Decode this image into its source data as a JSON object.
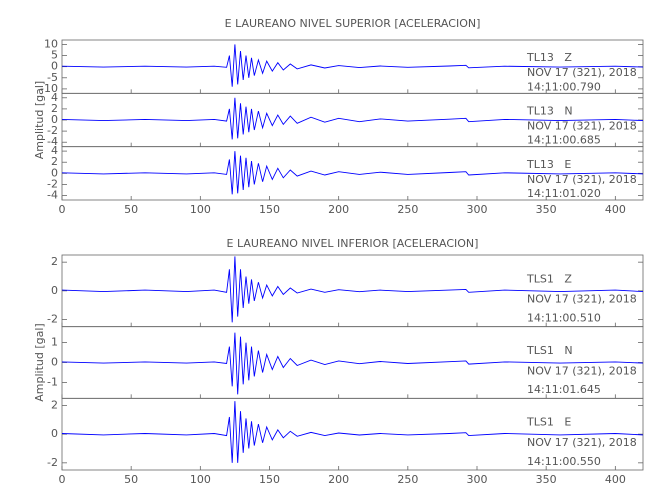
{
  "chart_data": [
    {
      "type": "line",
      "title": "E LAUREANO NIVEL SUPERIOR [ACELERACION]",
      "y_label": "Amplitud [gal]",
      "xlim": [
        0,
        420
      ],
      "xticks": [
        0,
        50,
        100,
        150,
        200,
        250,
        300,
        350,
        400
      ],
      "x": [
        0,
        30,
        60,
        90,
        110,
        119,
        121,
        123,
        125,
        127,
        129,
        131,
        133,
        135,
        137,
        139,
        142,
        145,
        148,
        152,
        156,
        160,
        165,
        170,
        180,
        190,
        200,
        215,
        230,
        250,
        280,
        292,
        294,
        320,
        360,
        400,
        420
      ],
      "series": [
        {
          "name": "TL13   Z",
          "date": "NOV 17 (321), 2018",
          "time": "14:11:00.790",
          "color": "#0000ff",
          "ylim": [
            -12,
            12
          ],
          "yticks": [
            -10,
            -5,
            0,
            5,
            10
          ],
          "values": [
            0.2,
            -0.2,
            0.2,
            -0.2,
            0.2,
            -0.3,
            5,
            -9,
            10,
            -8,
            7,
            -6,
            5,
            -5,
            4,
            -4,
            3,
            -3,
            2.5,
            -2,
            1.8,
            -1.5,
            1.2,
            -1,
            0.8,
            -0.6,
            0.5,
            -0.4,
            0.3,
            -0.3,
            0.3,
            0.6,
            -0.5,
            0.2,
            -0.2,
            0.2,
            -0.2
          ]
        },
        {
          "name": "TL13   N",
          "date": "NOV 17 (321), 2018",
          "time": "14:11:00.685",
          "color": "#0000ff",
          "ylim": [
            -4.8,
            4.8
          ],
          "yticks": [
            -4,
            -2,
            0,
            2,
            4
          ],
          "values": [
            0.1,
            -0.1,
            0.1,
            -0.1,
            0.1,
            -0.2,
            2,
            -3.5,
            4,
            -3.3,
            3,
            -2.6,
            2.4,
            -2.2,
            2,
            -1.8,
            1.6,
            -1.4,
            1.2,
            -1,
            0.9,
            -0.8,
            0.7,
            -0.6,
            0.5,
            -0.4,
            0.3,
            -0.3,
            0.2,
            -0.2,
            0.15,
            0.3,
            -0.3,
            0.1,
            -0.1,
            0.1,
            -0.1
          ]
        },
        {
          "name": "TL13   E",
          "date": "NOV 17 (321), 2018",
          "time": "14:11:01.020",
          "color": "#0000ff",
          "ylim": [
            -4.8,
            4.8
          ],
          "yticks": [
            -4,
            -2,
            0,
            2,
            4
          ],
          "values": [
            0.1,
            -0.1,
            0.1,
            -0.1,
            0.1,
            -0.2,
            2.5,
            -3.8,
            4,
            -3.6,
            3.2,
            -3,
            2.8,
            -2.5,
            2.2,
            -2,
            1.8,
            -1.5,
            1.3,
            -1.1,
            0.9,
            -0.8,
            0.6,
            -0.5,
            0.4,
            -0.3,
            0.3,
            -0.2,
            0.2,
            -0.2,
            0.15,
            0.3,
            -0.3,
            0.1,
            -0.1,
            0.1,
            -0.1
          ]
        }
      ]
    },
    {
      "type": "line",
      "title": "E LAUREANO NIVEL INFERIOR [ACELERACION]",
      "y_label": "Amplitud [gal]",
      "xlim": [
        0,
        420
      ],
      "xticks": [
        0,
        50,
        100,
        150,
        200,
        250,
        300,
        350,
        400
      ],
      "x": [
        0,
        30,
        60,
        90,
        110,
        119,
        121,
        123,
        125,
        127,
        129,
        131,
        133,
        135,
        137,
        139,
        142,
        145,
        148,
        152,
        156,
        160,
        165,
        170,
        180,
        190,
        200,
        215,
        230,
        250,
        280,
        292,
        294,
        320,
        360,
        400,
        420
      ],
      "series": [
        {
          "name": "TLS1   Z",
          "date": "NOV 17 (321), 2018",
          "time": "14:11:00.510",
          "color": "#0000ff",
          "ylim": [
            -2.5,
            2.5
          ],
          "yticks": [
            -2,
            0,
            2
          ],
          "values": [
            0.05,
            -0.05,
            0.05,
            -0.05,
            0.05,
            -0.1,
            1.5,
            -2.2,
            2.4,
            -1.8,
            1.5,
            -1.2,
            1,
            -0.9,
            0.8,
            -0.7,
            0.6,
            -0.5,
            0.4,
            -0.35,
            0.3,
            -0.25,
            0.2,
            -0.15,
            0.12,
            -0.1,
            0.08,
            -0.06,
            0.05,
            -0.05,
            0.05,
            0.1,
            -0.1,
            0.05,
            -0.05,
            0.05,
            -0.05
          ]
        },
        {
          "name": "TLS1   N",
          "date": "NOV 17 (321), 2018",
          "time": "14:11:01.645",
          "color": "#0000ff",
          "ylim": [
            -1.8,
            1.8
          ],
          "yticks": [
            -1,
            0,
            1
          ],
          "values": [
            0.03,
            -0.03,
            0.03,
            -0.03,
            0.03,
            -0.05,
            0.8,
            -1.2,
            1.5,
            -1.6,
            1.3,
            -1.1,
            1,
            -0.9,
            0.8,
            -0.7,
            0.6,
            -0.5,
            0.4,
            -0.35,
            0.3,
            -0.25,
            0.2,
            -0.15,
            0.12,
            -0.1,
            0.08,
            -0.06,
            0.05,
            -0.05,
            0.04,
            0.08,
            -0.08,
            0.03,
            -0.03,
            0.03,
            -0.03
          ]
        },
        {
          "name": "TLS1   E",
          "date": "NOV 17 (321), 2018",
          "time": "14:11:00.550",
          "color": "#0000ff",
          "ylim": [
            -2.5,
            2.5
          ],
          "yticks": [
            -2,
            0,
            2
          ],
          "values": [
            0.05,
            -0.05,
            0.05,
            -0.05,
            0.05,
            -0.1,
            1.2,
            -2,
            2.3,
            -2,
            1.6,
            -1.3,
            1.1,
            -1,
            0.9,
            -0.8,
            0.7,
            -0.6,
            0.5,
            -0.4,
            0.3,
            -0.25,
            0.2,
            -0.15,
            0.12,
            -0.1,
            0.08,
            -0.06,
            0.05,
            -0.05,
            0.05,
            0.1,
            -0.1,
            0.05,
            -0.05,
            0.05,
            -0.05
          ]
        }
      ]
    }
  ]
}
